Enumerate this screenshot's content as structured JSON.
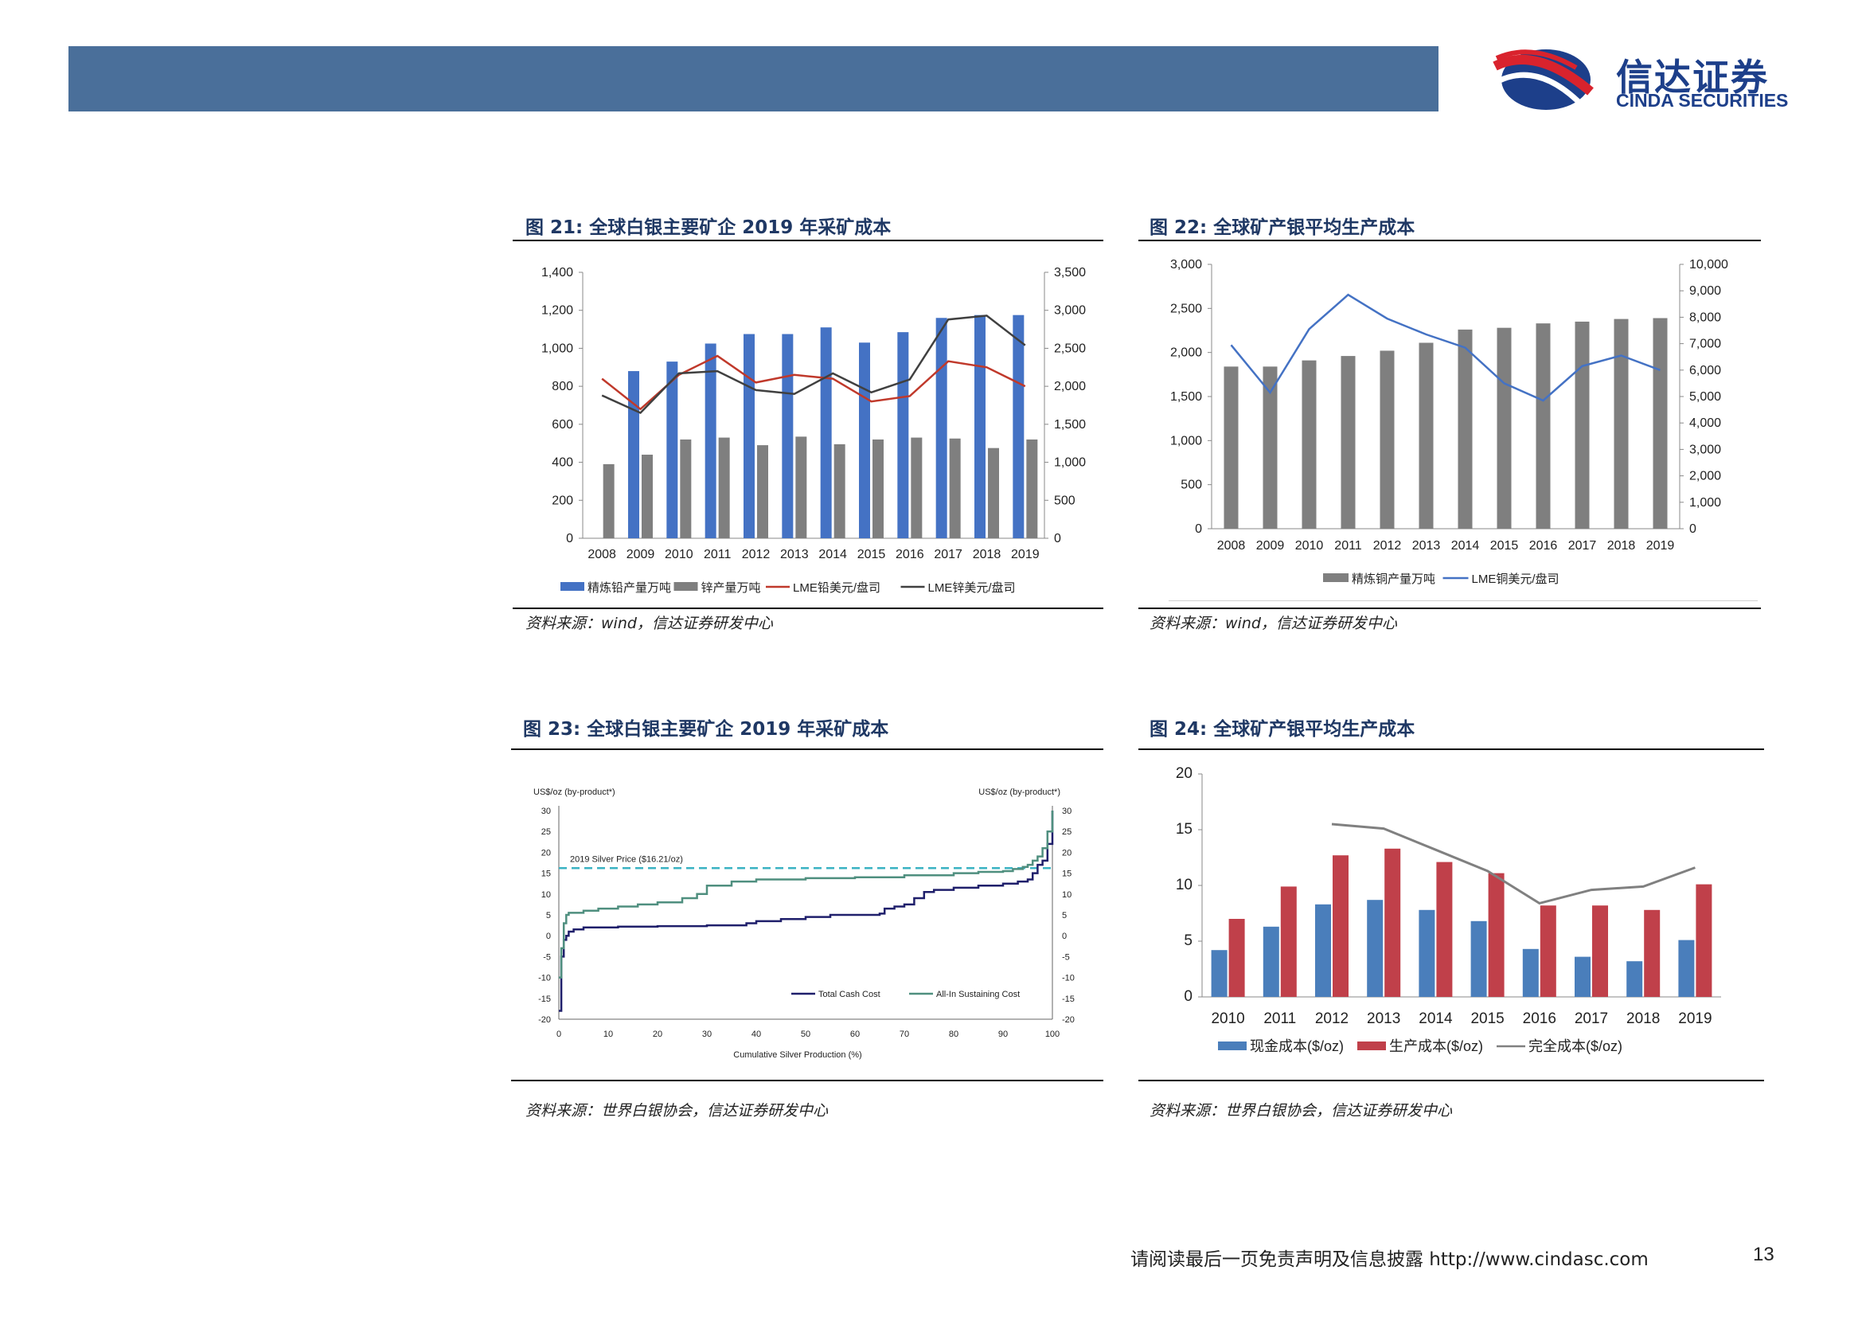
{
  "header": {
    "logo_cn": "信达证券",
    "logo_en": "CINDA SECURITIES",
    "brand_color": "#1d3f8a",
    "bar_color": "#4a6f9a"
  },
  "figures": [
    {
      "title": "图 21:  全球白银主要矿企 2019 年采矿成本",
      "source": "资料来源：wind，信达证券研发中心"
    },
    {
      "title": "图 22:  全球矿产银平均生产成本",
      "source": "资料来源：wind，信达证券研发中心"
    },
    {
      "title": "图 23:  全球白银主要矿企 2019 年采矿成本",
      "source": "资料来源：世界白银协会，信达证券研发中心"
    },
    {
      "title": "图 24:  全球矿产银平均生产成本",
      "source": "资料来源：世界白银协会，信达证券研发中心"
    }
  ],
  "footer": {
    "disclaimer": "请阅读最后一页免责声明及信息披露 http://www.cindasc.com",
    "page_number": "13"
  },
  "chart_data": [
    {
      "type": "bar",
      "categories": [
        "2008",
        "2009",
        "2010",
        "2011",
        "2012",
        "2013",
        "2014",
        "2015",
        "2016",
        "2017",
        "2018",
        "2019"
      ],
      "ylim": [
        0,
        1400
      ],
      "yticks": [
        "0",
        "200",
        "400",
        "600",
        "800",
        "1,000",
        "1,200",
        "1,400"
      ],
      "y2lim": [
        0,
        3500
      ],
      "y2ticks": [
        "0",
        "500",
        "1,000",
        "1,500",
        "2,000",
        "2,500",
        "3,000",
        "3,500"
      ],
      "grid": false,
      "legend": "bottom",
      "series": [
        {
          "name": "精炼铅产量万吨",
          "kind": "bar",
          "axis": "left",
          "color": "#4472c4",
          "values": [
            null,
            880,
            930,
            1025,
            1075,
            1075,
            1110,
            1030,
            1085,
            1160,
            1175,
            1175
          ]
        },
        {
          "name": "锌产量万吨",
          "kind": "bar",
          "axis": "left",
          "color": "#7f7f7f",
          "values": [
            390,
            440,
            520,
            530,
            490,
            535,
            495,
            520,
            530,
            525,
            475,
            520
          ]
        },
        {
          "name": "LME铅美元/盘司",
          "kind": "line",
          "axis": "right",
          "color": "#c0392b",
          "values": [
            2100,
            1700,
            2150,
            2400,
            2050,
            2150,
            2100,
            1800,
            1870,
            2330,
            2250,
            2000
          ]
        },
        {
          "name": "LME锌美元/盘司",
          "kind": "line",
          "axis": "right",
          "color": "#404040",
          "values": [
            1880,
            1650,
            2170,
            2200,
            1950,
            1900,
            2170,
            1920,
            2090,
            2880,
            2930,
            2540
          ]
        }
      ]
    },
    {
      "type": "bar",
      "categories": [
        "2008",
        "2009",
        "2010",
        "2011",
        "2012",
        "2013",
        "2014",
        "2015",
        "2016",
        "2017",
        "2018",
        "2019"
      ],
      "ylim": [
        0,
        3000
      ],
      "yticks": [
        "0",
        "500",
        "1,000",
        "1,500",
        "2,000",
        "2,500",
        "3,000"
      ],
      "y2lim": [
        0,
        10000
      ],
      "y2ticks": [
        "0",
        "1,000",
        "2,000",
        "3,000",
        "4,000",
        "5,000",
        "6,000",
        "7,000",
        "8,000",
        "9,000",
        "10,000"
      ],
      "grid": false,
      "legend": "bottom",
      "series": [
        {
          "name": "精炼铜产量万吨",
          "kind": "bar",
          "axis": "left",
          "color": "#7f7f7f",
          "values": [
            1840,
            1840,
            1910,
            1960,
            2020,
            2110,
            2260,
            2280,
            2330,
            2350,
            2380,
            2390
          ]
        },
        {
          "name": "LME铜美元/盘司",
          "kind": "line",
          "axis": "right",
          "color": "#4472c4",
          "values": [
            6950,
            5150,
            7550,
            8850,
            7950,
            7350,
            6850,
            5500,
            4850,
            6150,
            6550,
            6000
          ]
        }
      ]
    },
    {
      "type": "line",
      "xlabel": "Cumulative Silver Production (%)",
      "ylabel": "US$/oz (by-product*)",
      "y2label": "US$/oz (by-product*)",
      "xlim": [
        0,
        100
      ],
      "xticks": [
        "0",
        "10",
        "20",
        "30",
        "40",
        "50",
        "60",
        "70",
        "80",
        "90",
        "100"
      ],
      "ylim": [
        -20,
        30
      ],
      "yticks": [
        "-20",
        "-15",
        "-10",
        "-5",
        "0",
        "5",
        "10",
        "15",
        "20",
        "25",
        "30"
      ],
      "annotation": "2019 Silver Price ($16.21/oz)",
      "reference_line": 16.21,
      "legend": "bottom-right",
      "series": [
        {
          "name": "Total Cash Cost",
          "color": "#1f1f6b",
          "x": [
            0,
            0.5,
            1,
            1.5,
            2,
            3,
            5,
            8,
            12,
            20,
            30,
            38,
            40,
            45,
            50,
            55,
            60,
            65,
            66,
            68,
            70,
            72,
            74,
            76,
            80,
            85,
            90,
            93,
            95,
            96,
            97,
            98,
            99,
            100
          ],
          "y": [
            -18,
            -5,
            -1,
            0,
            1,
            1.5,
            2,
            2,
            2.2,
            2.3,
            2.5,
            3,
            3.5,
            4,
            4.5,
            5,
            5,
            5.3,
            6.5,
            7,
            7.5,
            9,
            10.5,
            11,
            11.5,
            12,
            12.5,
            13,
            13.5,
            15,
            17,
            18,
            22,
            30
          ]
        },
        {
          "name": "All-In Sustaining Cost",
          "color": "#4f8f7f",
          "x": [
            0,
            0.5,
            1,
            1.5,
            2,
            5,
            8,
            12,
            16,
            20,
            25,
            28,
            30,
            35,
            40,
            50,
            60,
            70,
            80,
            85,
            90,
            92,
            94,
            95,
            96,
            97,
            98,
            99,
            100
          ],
          "y": [
            -10,
            -3,
            3,
            5,
            5.5,
            6,
            6.5,
            7,
            7.5,
            8,
            9,
            10,
            12,
            13,
            13.5,
            13.8,
            14,
            14.5,
            15,
            15.3,
            15.5,
            16,
            16.5,
            17,
            18,
            19,
            21,
            25,
            30
          ]
        }
      ]
    },
    {
      "type": "bar",
      "categories": [
        "2010",
        "2011",
        "2012",
        "2013",
        "2014",
        "2015",
        "2016",
        "2017",
        "2018",
        "2019"
      ],
      "ylim": [
        0,
        20
      ],
      "yticks": [
        "0",
        "5",
        "10",
        "15",
        "20"
      ],
      "grid": false,
      "legend": "bottom",
      "series": [
        {
          "name": "现金成本($/oz)",
          "kind": "bar",
          "color": "#4a7ebb",
          "values": [
            4.2,
            6.3,
            8.3,
            8.7,
            7.8,
            6.8,
            4.3,
            3.6,
            3.2,
            5.1
          ]
        },
        {
          "name": "生产成本($/oz)",
          "kind": "bar",
          "color": "#c0404a",
          "values": [
            7.0,
            9.9,
            12.7,
            13.3,
            12.1,
            11.1,
            8.2,
            8.2,
            7.8,
            10.1
          ]
        },
        {
          "name": "完全成本($/oz)",
          "kind": "line",
          "color": "#808080",
          "values": [
            null,
            null,
            15.5,
            15.1,
            13.2,
            11.3,
            8.4,
            9.6,
            9.9,
            11.6
          ]
        }
      ]
    }
  ]
}
